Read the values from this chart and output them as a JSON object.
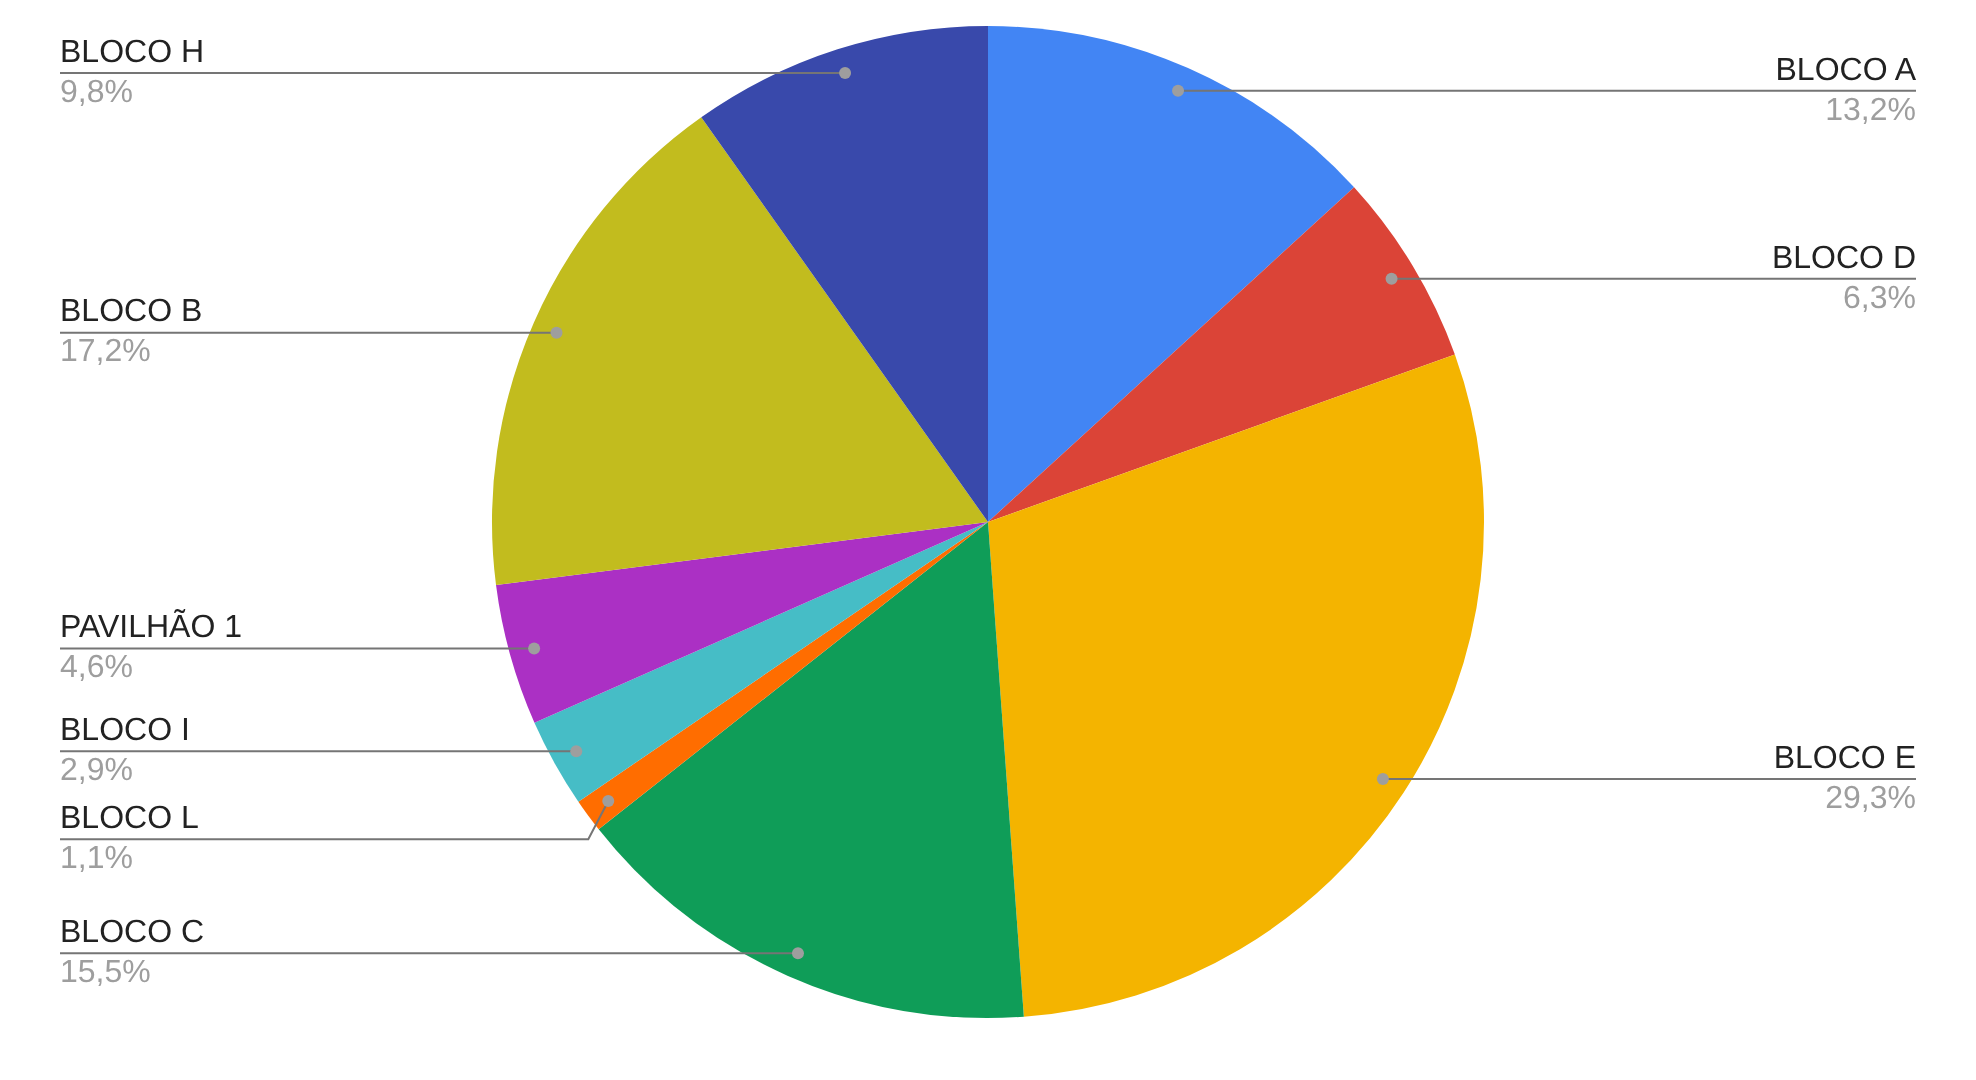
{
  "chart_data": {
    "type": "pie",
    "categories": [
      "BLOCO A",
      "BLOCO D",
      "BLOCO E",
      "BLOCO C",
      "BLOCO L",
      "BLOCO I",
      "PAVILHÃO 1",
      "BLOCO B",
      "BLOCO H"
    ],
    "values": [
      13.2,
      6.3,
      29.3,
      15.5,
      1.1,
      2.9,
      4.6,
      17.2,
      9.8
    ],
    "value_labels": [
      "13,2%",
      "6,3%",
      "29,3%",
      "15,5%",
      "1,1%",
      "2,9%",
      "4,6%",
      "17,2%",
      "9,8%"
    ],
    "colors": [
      "#4285f4",
      "#db4437",
      "#f4b400",
      "#0f9d58",
      "#ff6d00",
      "#46bdc6",
      "#ab30c4",
      "#c2bc1e",
      "#3949ab"
    ],
    "legend": false
  }
}
